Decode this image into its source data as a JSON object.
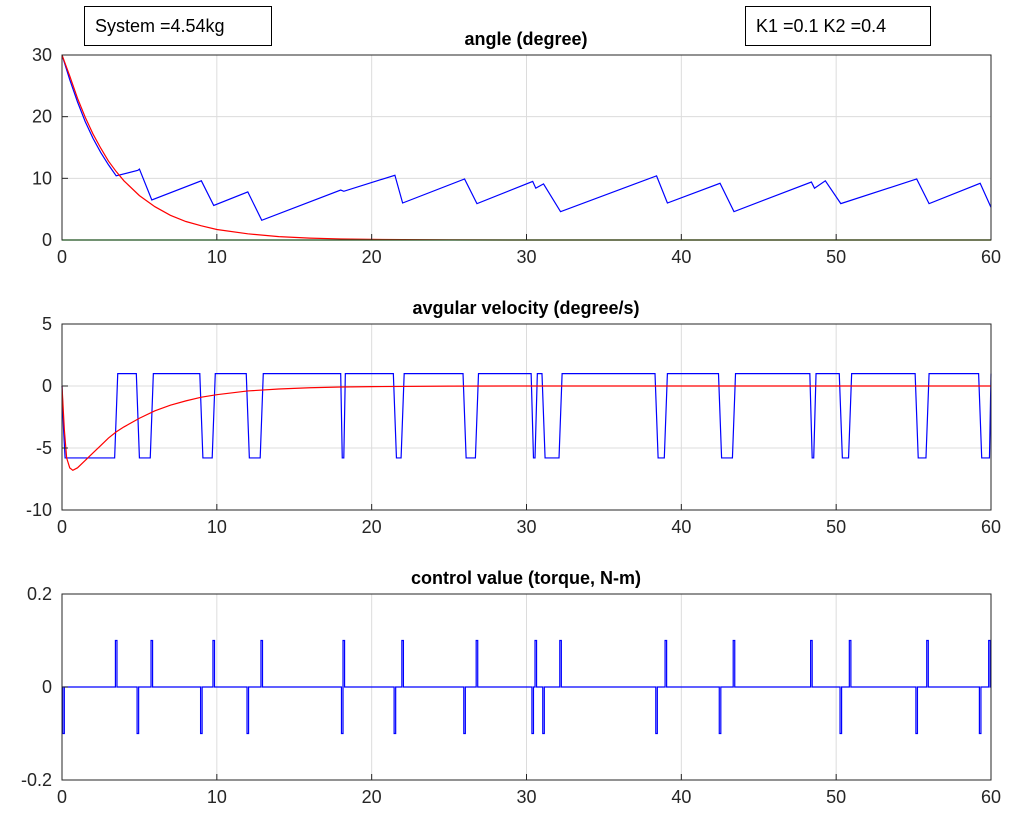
{
  "annotations": {
    "left": "System =4.54kg",
    "right": "K1 =0.1 K2 =0.4"
  },
  "colors": {
    "blue": "#0000ff",
    "red": "#ff0000",
    "green": "#00ff00",
    "grid": "#dcdcdc",
    "axis": "#262626"
  },
  "chart_data": [
    {
      "type": "line",
      "title": "angle (degree)",
      "xlim": [
        0,
        60
      ],
      "ylim": [
        0,
        30
      ],
      "xticks": [
        0,
        10,
        20,
        30,
        40,
        50,
        60
      ],
      "yticks": [
        0,
        10,
        20,
        30
      ],
      "grid": true,
      "series": [
        {
          "color": "#0000ff",
          "x": [
            0,
            0.5,
            1,
            1.5,
            2,
            2.5,
            3,
            3.5,
            4.9,
            5.0,
            5.8,
            9.0,
            9.8,
            12.0,
            12.9,
            18.0,
            18.2,
            21.5,
            22.0,
            26.0,
            26.8,
            30.4,
            30.6,
            31.1,
            32.2,
            38.4,
            39.1,
            42.5,
            43.4,
            48.4,
            48.6,
            49.3,
            50.3,
            55.2,
            56.0,
            59.3,
            60
          ],
          "y": [
            30,
            26.0,
            22.4,
            19.2,
            16.5,
            14.2,
            12.2,
            10.4,
            11.3,
            11.5,
            6.5,
            9.6,
            5.6,
            7.8,
            3.2,
            8.1,
            7.9,
            10.5,
            6.0,
            9.9,
            5.9,
            9.5,
            8.4,
            9.1,
            4.6,
            10.4,
            6.0,
            9.2,
            4.6,
            9.4,
            8.4,
            9.6,
            5.9,
            9.9,
            5.9,
            9.2,
            5.3
          ]
        },
        {
          "color": "#ff0000",
          "x": [
            0,
            0.5,
            1,
            1.5,
            2,
            2.5,
            3,
            3.5,
            4,
            5,
            6,
            7,
            8,
            9,
            10,
            12,
            14,
            16,
            18,
            20,
            22,
            25,
            30,
            35,
            40,
            50,
            60
          ],
          "y": [
            30,
            26.6,
            23.0,
            19.9,
            17.2,
            14.9,
            12.8,
            11.1,
            9.6,
            7.2,
            5.4,
            4.0,
            3.0,
            2.3,
            1.7,
            1.0,
            0.55,
            0.31,
            0.17,
            0.1,
            0.06,
            0.02,
            0.0,
            0.0,
            0.0,
            0.0,
            0.0
          ]
        },
        {
          "color": "#00ff00",
          "x": [
            0,
            60
          ],
          "y": [
            0,
            0
          ]
        }
      ]
    },
    {
      "type": "line",
      "title": "avgular velocity (degree/s)",
      "xlim": [
        0,
        60
      ],
      "ylim": [
        -10,
        5
      ],
      "xticks": [
        0,
        10,
        20,
        30,
        40,
        50,
        60
      ],
      "yticks": [
        -10,
        -5,
        0,
        5
      ],
      "grid": true,
      "series": [
        {
          "color": "#0000ff",
          "x": [
            0,
            0.1,
            0.2,
            0.3,
            0.4,
            0.5,
            0.7,
            3.4,
            3.6,
            4.8,
            5.0,
            5.7,
            5.9,
            8.9,
            9.1,
            9.7,
            9.9,
            11.9,
            12.1,
            12.8,
            13.0,
            18.0,
            18.1,
            18.2,
            18.3,
            21.4,
            21.6,
            21.9,
            22.1,
            25.9,
            26.1,
            26.7,
            26.9,
            30.3,
            30.45,
            30.55,
            30.7,
            31.0,
            31.2,
            32.1,
            32.3,
            38.3,
            38.5,
            38.9,
            39.1,
            42.4,
            42.6,
            43.3,
            43.5,
            48.3,
            48.45,
            48.55,
            48.7,
            50.2,
            50.4,
            50.8,
            51.0,
            55.1,
            55.3,
            55.8,
            56.0,
            59.2,
            59.4,
            59.9,
            60
          ],
          "y": [
            0,
            -3.5,
            -5.8,
            -5.8,
            -5.8,
            -5.8,
            -5.8,
            -5.8,
            1,
            1,
            -5.8,
            -5.8,
            1,
            1,
            -5.8,
            -5.8,
            1,
            1,
            -5.8,
            -5.8,
            1,
            1,
            -5.8,
            -5.8,
            1,
            1,
            -5.8,
            -5.8,
            1,
            1,
            -5.8,
            -5.8,
            1,
            1,
            -5.8,
            -5.8,
            1,
            1,
            -5.8,
            -5.8,
            1,
            1,
            -5.8,
            -5.8,
            1,
            1,
            -5.8,
            -5.8,
            1,
            1,
            -5.8,
            -5.8,
            1,
            1,
            -5.8,
            -5.8,
            1,
            1,
            -5.8,
            -5.8,
            1,
            1,
            -5.8,
            -5.8,
            1
          ]
        },
        {
          "color": "#ff0000",
          "x": [
            0,
            0.15,
            0.3,
            0.5,
            0.7,
            1.0,
            1.5,
            2,
            2.5,
            3,
            3.5,
            4,
            5,
            6,
            7,
            8,
            9,
            10,
            12,
            14,
            16,
            18,
            20,
            25,
            30,
            40,
            50,
            60
          ],
          "y": [
            0,
            -3.5,
            -5.8,
            -6.6,
            -6.8,
            -6.6,
            -6.0,
            -5.4,
            -4.8,
            -4.2,
            -3.7,
            -3.3,
            -2.6,
            -2.0,
            -1.55,
            -1.2,
            -0.9,
            -0.7,
            -0.4,
            -0.24,
            -0.14,
            -0.08,
            -0.05,
            -0.01,
            0,
            0,
            0,
            0
          ]
        }
      ]
    },
    {
      "type": "line",
      "title": "control value (torque, N-m)",
      "xlim": [
        0,
        60
      ],
      "ylim": [
        -0.2,
        0.2
      ],
      "xticks": [
        0,
        10,
        20,
        30,
        40,
        50,
        60
      ],
      "yticks": [
        -0.2,
        0,
        0.2
      ],
      "grid": true,
      "series": [
        {
          "color": "#0000ff",
          "pulse_baseline": 0,
          "pulses": [
            {
              "x": 0.1,
              "y": -0.1
            },
            {
              "x": 3.5,
              "y": 0.1
            },
            {
              "x": 4.9,
              "y": -0.1
            },
            {
              "x": 5.8,
              "y": 0.1
            },
            {
              "x": 9.0,
              "y": -0.1
            },
            {
              "x": 9.8,
              "y": 0.1
            },
            {
              "x": 12.0,
              "y": -0.1
            },
            {
              "x": 12.9,
              "y": 0.1
            },
            {
              "x": 18.1,
              "y": -0.1
            },
            {
              "x": 18.2,
              "y": 0.1
            },
            {
              "x": 21.5,
              "y": -0.1
            },
            {
              "x": 22.0,
              "y": 0.1
            },
            {
              "x": 26.0,
              "y": -0.1
            },
            {
              "x": 26.8,
              "y": 0.1
            },
            {
              "x": 30.4,
              "y": -0.1
            },
            {
              "x": 30.6,
              "y": 0.1
            },
            {
              "x": 31.1,
              "y": -0.1
            },
            {
              "x": 32.2,
              "y": 0.1
            },
            {
              "x": 38.4,
              "y": -0.1
            },
            {
              "x": 39.0,
              "y": 0.1
            },
            {
              "x": 42.5,
              "y": -0.1
            },
            {
              "x": 43.4,
              "y": 0.1
            },
            {
              "x": 48.4,
              "y": 0.1
            },
            {
              "x": 50.3,
              "y": -0.1
            },
            {
              "x": 50.9,
              "y": 0.1
            },
            {
              "x": 55.2,
              "y": -0.1
            },
            {
              "x": 55.9,
              "y": 0.1
            },
            {
              "x": 59.3,
              "y": -0.1
            },
            {
              "x": 59.9,
              "y": 0.1
            }
          ]
        }
      ]
    }
  ]
}
